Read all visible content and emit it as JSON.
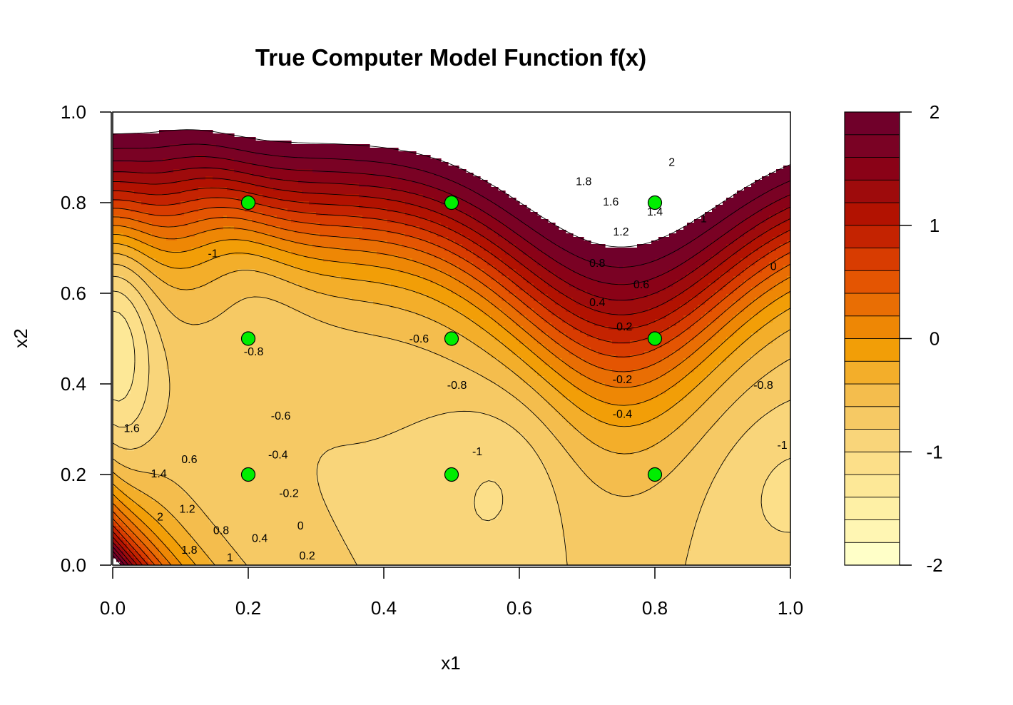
{
  "chart_data": {
    "type": "contour",
    "title": "True Computer Model Function f(x)",
    "xlabel": "x1",
    "ylabel": "x2",
    "xlim": [
      0,
      1
    ],
    "ylim": [
      0,
      1
    ],
    "x_ticks": [
      "0.0",
      "0.2",
      "0.4",
      "0.6",
      "0.8",
      "1.0"
    ],
    "y_ticks": [
      "0.0",
      "0.2",
      "0.4",
      "0.6",
      "0.8",
      "1.0"
    ],
    "colorbar": {
      "range": [
        -2,
        2
      ],
      "step": 0.2,
      "ticks": [
        "2",
        "1",
        "0",
        "-1",
        "-2"
      ],
      "colors": [
        "#FFFFC8",
        "#FFF6B3",
        "#FEF0A5",
        "#FDE897",
        "#FCDF89",
        "#F9D57A",
        "#F6C964",
        "#F4BD4D",
        "#F3AE2A",
        "#F29E07",
        "#EE8705",
        "#E96E04",
        "#E45502",
        "#D83C01",
        "#C42301",
        "#B21201",
        "#9E0B0C",
        "#8A0217",
        "#7A0224",
        "#70002A"
      ]
    },
    "contour_labels": [
      {
        "text": "1.8",
        "x": 0.695,
        "y": 0.845
      },
      {
        "text": "1.6",
        "x": 0.735,
        "y": 0.8
      },
      {
        "text": "1.4",
        "x": 0.8,
        "y": 0.778
      },
      {
        "text": "2",
        "x": 0.825,
        "y": 0.888
      },
      {
        "text": "1.2",
        "x": 0.75,
        "y": 0.734
      },
      {
        "text": "1",
        "x": 0.872,
        "y": 0.763
      },
      {
        "text": "0.8",
        "x": 0.715,
        "y": 0.665
      },
      {
        "text": "0.6",
        "x": 0.78,
        "y": 0.618
      },
      {
        "text": "0.4",
        "x": 0.715,
        "y": 0.578
      },
      {
        "text": "0.2",
        "x": 0.755,
        "y": 0.525
      },
      {
        "text": "0",
        "x": 0.975,
        "y": 0.658
      },
      {
        "text": "-0.2",
        "x": 0.752,
        "y": 0.408
      },
      {
        "text": "-0.4",
        "x": 0.752,
        "y": 0.332
      },
      {
        "text": "-0.6",
        "x": 0.452,
        "y": 0.498
      },
      {
        "text": "-0.8",
        "x": 0.508,
        "y": 0.396
      },
      {
        "text": "-1",
        "x": 0.538,
        "y": 0.249
      },
      {
        "text": "-1",
        "x": 0.148,
        "y": 0.686
      },
      {
        "text": "-0.8",
        "x": 0.208,
        "y": 0.47
      },
      {
        "text": "-0.6",
        "x": 0.248,
        "y": 0.328
      },
      {
        "text": "-0.4",
        "x": 0.244,
        "y": 0.242
      },
      {
        "text": "-0.2",
        "x": 0.26,
        "y": 0.157
      },
      {
        "text": "0",
        "x": 0.277,
        "y": 0.085
      },
      {
        "text": "0.2",
        "x": 0.287,
        "y": 0.019
      },
      {
        "text": "0.4",
        "x": 0.217,
        "y": 0.058
      },
      {
        "text": "0.6",
        "x": 0.113,
        "y": 0.232
      },
      {
        "text": "0.8",
        "x": 0.16,
        "y": 0.075
      },
      {
        "text": "1",
        "x": 0.173,
        "y": 0.015
      },
      {
        "text": "1.2",
        "x": 0.11,
        "y": 0.122
      },
      {
        "text": "1.4",
        "x": 0.068,
        "y": 0.2
      },
      {
        "text": "1.6",
        "x": 0.028,
        "y": 0.3
      },
      {
        "text": "1.8",
        "x": 0.113,
        "y": 0.032
      },
      {
        "text": "2",
        "x": 0.07,
        "y": 0.105
      },
      {
        "text": "-0.8",
        "x": 0.96,
        "y": 0.396
      },
      {
        "text": "-1",
        "x": 0.988,
        "y": 0.263
      }
    ],
    "design_points": [
      {
        "x": 0.2,
        "y": 0.8
      },
      {
        "x": 0.5,
        "y": 0.8
      },
      {
        "x": 0.8,
        "y": 0.8
      },
      {
        "x": 0.2,
        "y": 0.5
      },
      {
        "x": 0.5,
        "y": 0.5
      },
      {
        "x": 0.8,
        "y": 0.5
      },
      {
        "x": 0.2,
        "y": 0.2
      },
      {
        "x": 0.5,
        "y": 0.2
      },
      {
        "x": 0.8,
        "y": 0.2
      }
    ],
    "point_color": "#00EE00"
  }
}
